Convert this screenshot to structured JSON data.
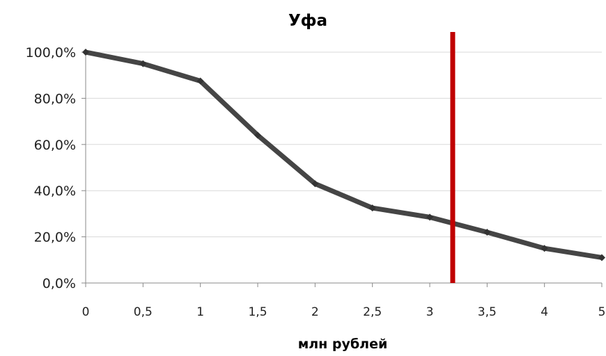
{
  "chart_data": {
    "type": "line",
    "title": "Уфа",
    "xlabel": "млн рублей",
    "ylabel": "",
    "x": [
      0,
      0.5,
      1,
      1.5,
      2,
      2.5,
      3,
      3.5,
      4,
      5
    ],
    "x_tick_labels": [
      "0",
      "0,5",
      "1",
      "1,5",
      "2",
      "2,5",
      "3",
      "3,5",
      "4",
      "5"
    ],
    "y_tick_labels": [
      "0,0%",
      "20,0%",
      "40,0%",
      "60,0%",
      "80,0%",
      "100,0%"
    ],
    "ylim": [
      0,
      100
    ],
    "y_unit": "%",
    "grid": "horizontal",
    "legend": "none",
    "series": [
      {
        "values": [
          100,
          95,
          87.5,
          64,
          43,
          32.5,
          28.5,
          22,
          15,
          11
        ],
        "color": "#454545"
      }
    ],
    "reference_line": {
      "axis": "x",
      "value": 3.2,
      "color": "#c00000"
    }
  }
}
